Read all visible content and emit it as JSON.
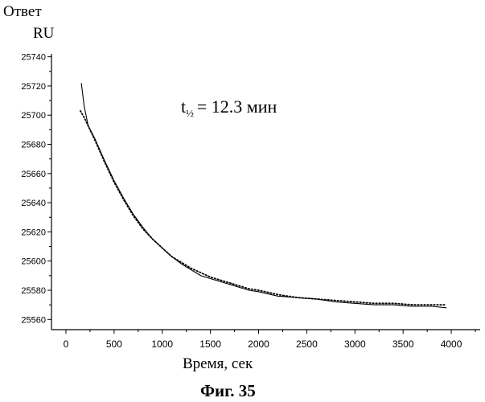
{
  "chart_data": {
    "type": "line",
    "ylabel_line1": "Ответ",
    "ylabel_line2": "RU",
    "xlabel": "Время, сек",
    "annotation_main": "t",
    "annotation_sub": "½",
    "annotation_rest": "= 12.3 мин",
    "caption": "Фиг. 35",
    "xlim": [
      -150,
      4300
    ],
    "ylim": [
      25553,
      25742
    ],
    "x_ticks": [
      0,
      500,
      1000,
      1500,
      2000,
      2500,
      3000,
      3500,
      4000
    ],
    "y_ticks": [
      25560,
      25580,
      25600,
      25620,
      25640,
      25660,
      25680,
      25700,
      25720,
      25740
    ],
    "series": [
      {
        "style": "solid",
        "x": [
          160,
          190,
          230,
          300,
          400,
          500,
          600,
          700,
          800,
          900,
          1000,
          1100,
          1200,
          1300,
          1400,
          1500,
          1600,
          1700,
          1800,
          1900,
          2000,
          2200,
          2400,
          2600,
          2800,
          3000,
          3200,
          3400,
          3600,
          3800,
          3950
        ],
        "y": [
          25722,
          25706,
          25693,
          25684,
          25669,
          25655,
          25643,
          25632,
          25623,
          25615,
          25609,
          25603,
          25598,
          25594,
          25590,
          25588,
          25586,
          25584,
          25582,
          25580,
          25579,
          25576,
          25575,
          25574,
          25572,
          25571,
          25570,
          25570,
          25569,
          25569,
          25568
        ]
      },
      {
        "style": "dotted",
        "x": [
          150,
          200,
          300,
          400,
          500,
          600,
          700,
          800,
          900,
          1000,
          1100,
          1200,
          1300,
          1400,
          1500,
          1600,
          1700,
          1800,
          1900,
          2000,
          2200,
          2400,
          2600,
          2800,
          3000,
          3200,
          3400,
          3600,
          3800,
          3950
        ],
        "y": [
          25703,
          25697,
          25683,
          25668,
          25654,
          25642,
          25631,
          25622,
          25615,
          25609,
          25603,
          25599,
          25595,
          25592,
          25589,
          25587,
          25585,
          25583,
          25581,
          25580,
          25577,
          25575,
          25574,
          25573,
          25572,
          25571,
          25571,
          25570,
          25570,
          25570
        ]
      }
    ]
  }
}
